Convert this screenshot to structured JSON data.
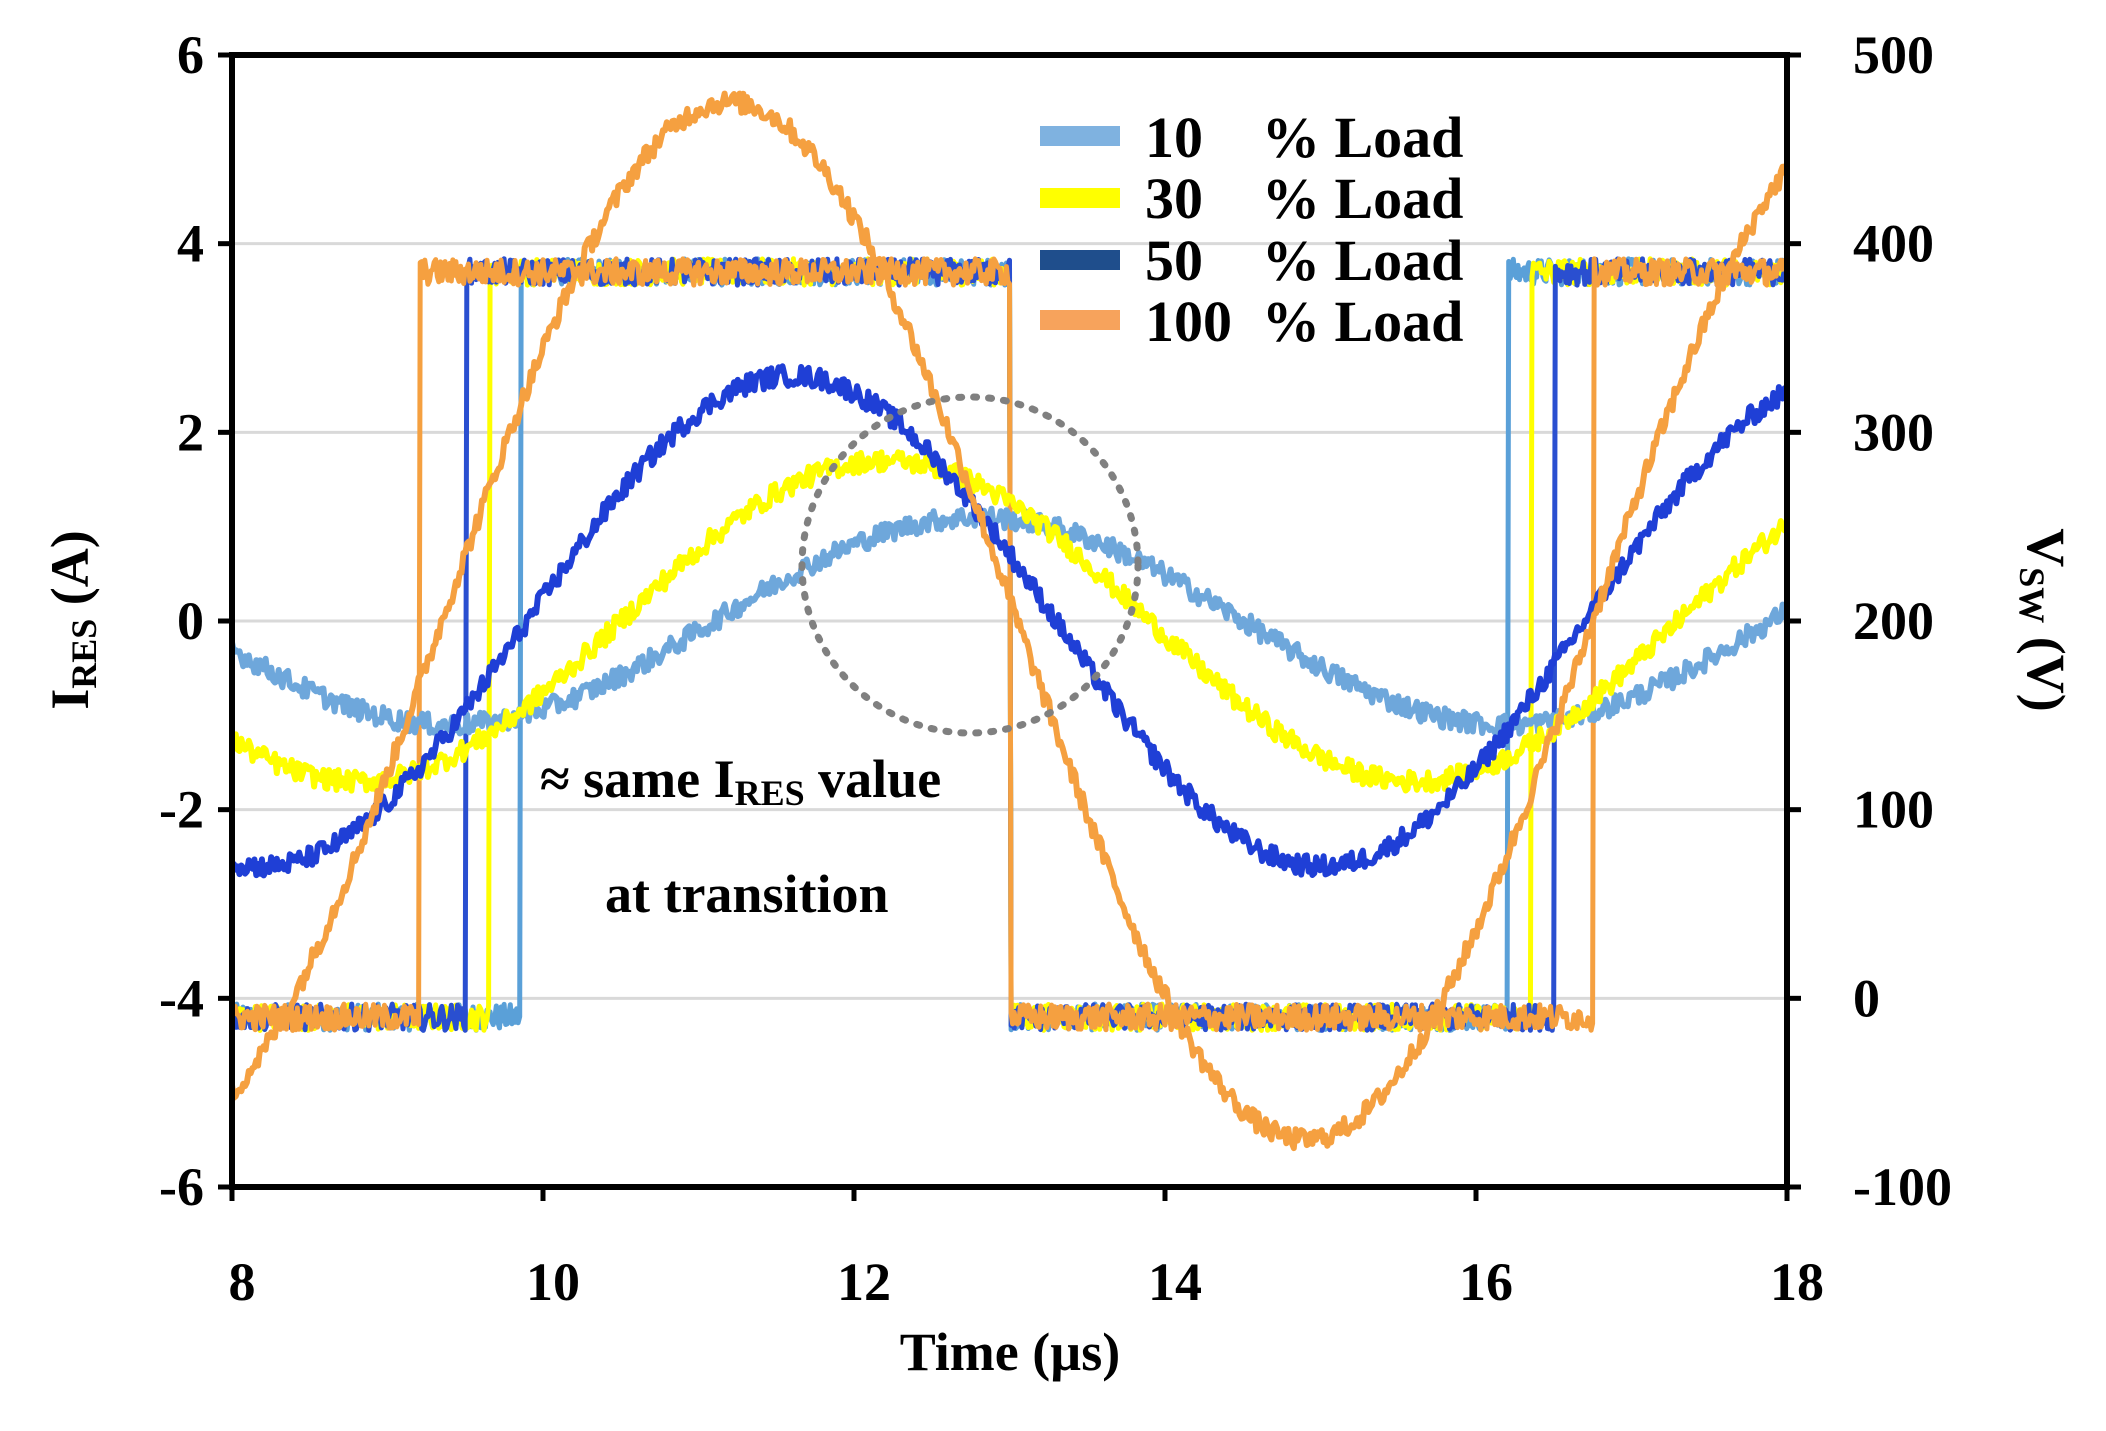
{
  "chart_data": {
    "type": "line",
    "xlabel": "Time (µs)",
    "ylabel_left": {
      "main": "I",
      "sub": "RES",
      "unit": " (A)"
    },
    "ylabel_right": {
      "main": "V",
      "sub": "SW",
      "unit": " (V)"
    },
    "xlim": [
      8,
      18
    ],
    "ylim_left": [
      -6,
      6
    ],
    "ylim_right": [
      -100,
      500
    ],
    "x_ticks": [
      8,
      10,
      12,
      14,
      16,
      18
    ],
    "y_left_ticks": [
      6,
      4,
      2,
      0,
      -2,
      -4,
      -6
    ],
    "y_right_ticks": [
      500,
      400,
      300,
      200,
      100,
      0,
      -100
    ],
    "grid": "horizontal",
    "legend_position": "top-right",
    "legend": [
      {
        "number": "10",
        "label": "% Load",
        "color": "#7fb2e0"
      },
      {
        "number": "30",
        "label": "% Load",
        "color": "#ffff00"
      },
      {
        "number": "50",
        "label": "% Load",
        "color": "#1f4e8c"
      },
      {
        "number": "100",
        "label": "% Load",
        "color": "#f7a35c"
      }
    ],
    "annotations": {
      "line1_prefix": "≈ same I",
      "line1_sub": "RES",
      "line1_suffix": " value",
      "line2": "at transition"
    },
    "series_current": [
      {
        "name": "10 % Load current",
        "color": "#6ea7db",
        "amplitude": 1.1,
        "phase_x": 12.8,
        "period": 6.8,
        "offset": 0.0
      },
      {
        "name": "30 % Load current",
        "color": "#ffff00",
        "amplitude": 1.7,
        "phase_x": 12.2,
        "period": 6.8,
        "offset": 0.0
      },
      {
        "name": "50 % Load current",
        "color": "#1f3fd6",
        "amplitude": 2.6,
        "phase_x": 11.6,
        "period": 6.8,
        "offset": 0.0
      },
      {
        "name": "100 % Load current",
        "color": "#f5a040",
        "amplitude": 5.5,
        "phase_x": 11.2,
        "period": 7.4,
        "offset": 0.0
      }
    ],
    "series_voltage": [
      {
        "name": "10 % Load voltage",
        "color": "#5aa0d8",
        "high": 385,
        "low": -10,
        "rise1": 9.85,
        "fall": 13.0,
        "rise2": 16.2
      },
      {
        "name": "30 % Load voltage",
        "color": "#ffff00",
        "high": 385,
        "low": -10,
        "rise1": 9.65,
        "fall": 13.0,
        "rise2": 16.35
      },
      {
        "name": "50 % Load voltage",
        "color": "#2a4fd0",
        "high": 385,
        "low": -10,
        "rise1": 9.5,
        "fall": 13.0,
        "rise2": 16.5
      },
      {
        "name": "100 % Load voltage",
        "color": "#f5a040",
        "high": 385,
        "low": -10,
        "rise1": 9.2,
        "fall": 13.0,
        "rise2": 16.75
      }
    ]
  }
}
